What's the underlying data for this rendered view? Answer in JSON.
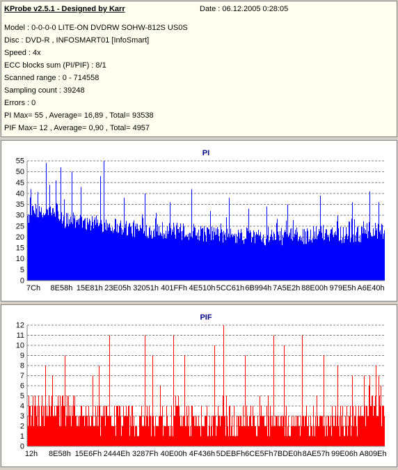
{
  "info": {
    "app_title": "KProbe v2.5.1 - Designed by Karr",
    "date": "Date : 06.12.2005 0:28:05",
    "lines": [
      "Model : 0-0-0-0 LITE-ON DVDRW SOHW-812S  US0S",
      "Disc : DVD-R , INFOSMART01 [InfoSmart]",
      "Speed : 4x",
      "ECC blocks sum (PI/PIF) : 8/1",
      "Scanned range : 0 - 714558",
      "Sampling count : 39248",
      "Errors : 0",
      "PI Max= 55 , Average= 16,89 , Total= 93538",
      "PIF Max= 12 , Average= 0,90 , Total= 4957"
    ]
  },
  "chart_data": [
    {
      "type": "bar",
      "title": "PI",
      "color": "#0000ff",
      "ylim": [
        0,
        55
      ],
      "yticks": [
        0,
        5,
        10,
        15,
        20,
        25,
        30,
        35,
        40,
        45,
        50,
        55
      ],
      "xticks": [
        "7Ch",
        "8E58h",
        "15E81h",
        "23E05h",
        "32051h",
        "401FFh",
        "4E510h",
        "5CC61h",
        "6B994h",
        "7A5E2h",
        "88E00h",
        "979E5h",
        "A6E40h"
      ],
      "grid": "dashed horizontal",
      "profile": [
        [
          0,
          28
        ],
        [
          0.02,
          30
        ],
        [
          0.04,
          29
        ],
        [
          0.06,
          30
        ],
        [
          0.08,
          29
        ],
        [
          0.1,
          27
        ],
        [
          0.12,
          26
        ],
        [
          0.15,
          26
        ],
        [
          0.18,
          25
        ],
        [
          0.21,
          25
        ],
        [
          0.25,
          24
        ],
        [
          0.28,
          23
        ],
        [
          0.32,
          22
        ],
        [
          0.36,
          22
        ],
        [
          0.4,
          22
        ],
        [
          0.44,
          21
        ],
        [
          0.48,
          21
        ],
        [
          0.52,
          20
        ],
        [
          0.56,
          19
        ],
        [
          0.6,
          19
        ],
        [
          0.64,
          19
        ],
        [
          0.68,
          19
        ],
        [
          0.72,
          19
        ],
        [
          0.76,
          19
        ],
        [
          0.8,
          20
        ],
        [
          0.84,
          21
        ],
        [
          0.88,
          20
        ],
        [
          0.92,
          20
        ],
        [
          0.96,
          21
        ],
        [
          1.0,
          22
        ]
      ],
      "peaks": [
        [
          0.052,
          54
        ],
        [
          0.062,
          44
        ],
        [
          0.094,
          52
        ],
        [
          0.125,
          50
        ],
        [
          0.215,
          55
        ],
        [
          0.205,
          48
        ],
        [
          0.08,
          46
        ],
        [
          0.15,
          43
        ],
        [
          0.33,
          40
        ],
        [
          0.46,
          42
        ],
        [
          0.565,
          38
        ],
        [
          0.73,
          35
        ],
        [
          0.82,
          39
        ],
        [
          0.91,
          36
        ],
        [
          0.96,
          41
        ],
        [
          0.985,
          36
        ],
        [
          0.01,
          42
        ],
        [
          0.03,
          40
        ],
        [
          0.27,
          38
        ],
        [
          0.4,
          36
        ],
        [
          0.62,
          33
        ],
        [
          0.67,
          34
        ]
      ],
      "noise": 8
    },
    {
      "type": "bar",
      "title": "PIF",
      "color": "#ff0000",
      "ylim": [
        0,
        12
      ],
      "yticks": [
        0,
        1,
        2,
        3,
        4,
        5,
        6,
        7,
        8,
        9,
        10,
        11,
        12
      ],
      "xticks": [
        "12h",
        "8E58h",
        "15E6Fh",
        "2444Eh",
        "3287Fh",
        "40E00h",
        "4F436h",
        "5DEBFh",
        "6CE5Fh",
        "7BDE0h",
        "8AE57h",
        "99E06h",
        "A809Eh"
      ],
      "grid": "dashed horizontal",
      "profile": [
        [
          0,
          3
        ],
        [
          0.05,
          3
        ],
        [
          0.1,
          3
        ],
        [
          0.2,
          2.5
        ],
        [
          0.3,
          2
        ],
        [
          0.4,
          2
        ],
        [
          0.5,
          2
        ],
        [
          0.6,
          2
        ],
        [
          0.7,
          2
        ],
        [
          0.8,
          2
        ],
        [
          0.9,
          2
        ],
        [
          0.95,
          2.5
        ],
        [
          1.0,
          3.5
        ]
      ],
      "peaks": [
        [
          0.05,
          8
        ],
        [
          0.07,
          7
        ],
        [
          0.105,
          9
        ],
        [
          0.2,
          8
        ],
        [
          0.23,
          11
        ],
        [
          0.33,
          11
        ],
        [
          0.35,
          9
        ],
        [
          0.41,
          11
        ],
        [
          0.44,
          9
        ],
        [
          0.525,
          10
        ],
        [
          0.55,
          12
        ],
        [
          0.61,
          9
        ],
        [
          0.69,
          11
        ],
        [
          0.72,
          10
        ],
        [
          0.77,
          11
        ],
        [
          0.83,
          9
        ],
        [
          0.87,
          8
        ],
        [
          0.91,
          7
        ],
        [
          0.985,
          7
        ]
      ],
      "noise": 3
    }
  ]
}
